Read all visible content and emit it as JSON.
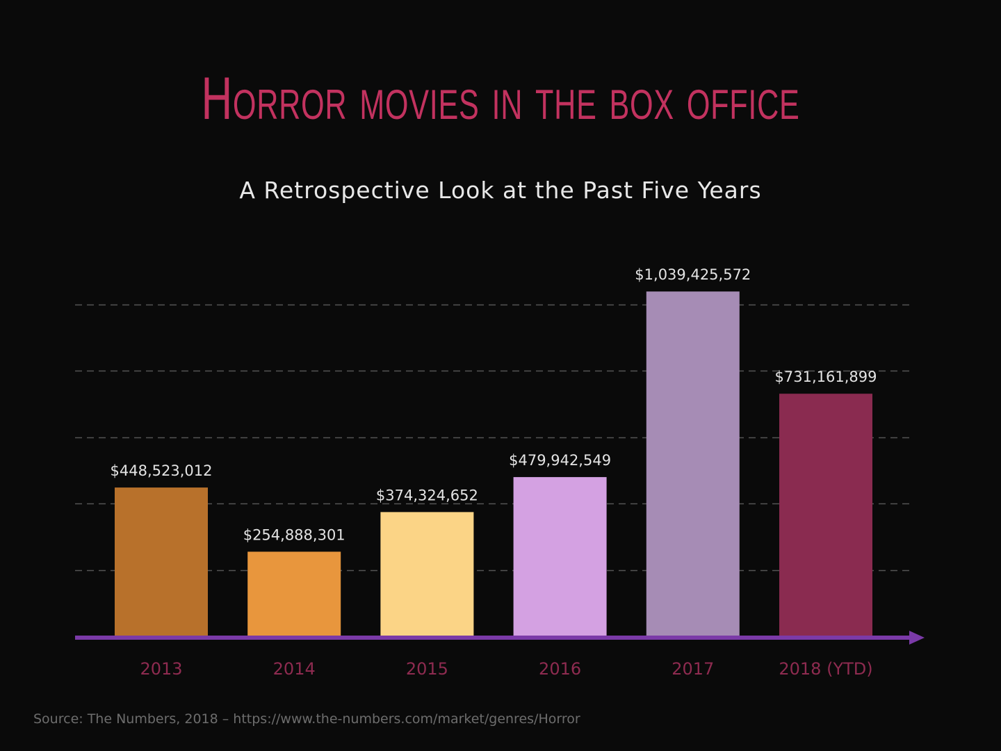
{
  "title": "Horror movies in the box office",
  "subtitle": "A Retrospective Look at the Past Five Years",
  "source": "Source:  The Numbers, 2018 – https://www.the-numbers.com/market/genres/Horror",
  "colors": {
    "background": "#0a0a0a",
    "title": "#c2325f",
    "axis": "#7b3aa8",
    "gridline": "#555555",
    "category_label": "#8e2b50",
    "value_label": "#e4e4e4"
  },
  "chart_data": {
    "type": "bar",
    "categories": [
      "2013",
      "2014",
      "2015",
      "2016",
      "2017",
      "2018 (YTD)"
    ],
    "values": [
      448523012,
      254888301,
      374324652,
      479942549,
      1039425572,
      731161899
    ],
    "value_labels": [
      "$448,523,012",
      "$254,888,301",
      "$374,324,652",
      "$479,942,549",
      "$1,039,425,572",
      "$731,161,899"
    ],
    "bar_colors": [
      "#b8712b",
      "#e8963d",
      "#fbd486",
      "#d4a1e2",
      "#a68cb5",
      "#8a2b50"
    ],
    "title": "Horror movies in the box office",
    "subtitle": "A Retrospective Look at the Past Five Years",
    "xlabel": "",
    "ylabel": "",
    "ylim": [
      0,
      1000000000
    ],
    "gridline_values": [
      200000000,
      400000000,
      600000000,
      800000000,
      1000000000
    ],
    "grid": true,
    "gridline_style": "dashed",
    "legend": "none"
  }
}
